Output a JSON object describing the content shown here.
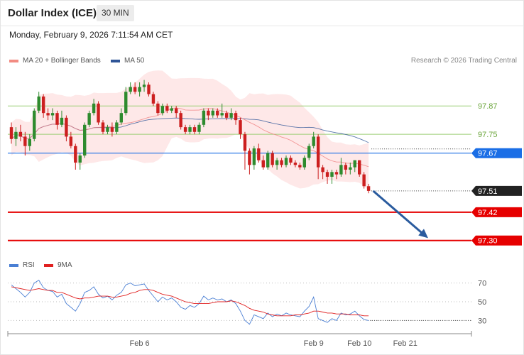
{
  "header": {
    "title": "Dollar Index (ICE)",
    "timeframe": "30 MIN"
  },
  "datetime": "Monday, February 9, 2026 7:11:54 AM CET",
  "legend": {
    "items": [
      {
        "label": "MA 20 + Bollinger Bands",
        "color": "#f28b82"
      },
      {
        "label": "MA 50",
        "color": "#2f5597"
      }
    ],
    "credit": "Research © 2026 Trading Central"
  },
  "rsi_legend": {
    "items": [
      {
        "label": "RSI",
        "color": "#4a7fd4"
      },
      {
        "label": "9MA",
        "color": "#e02020"
      }
    ]
  },
  "colors": {
    "up": "#2e8b2e",
    "down": "#cc1f1f",
    "band": "#fde0e0",
    "ma20": "#f08080",
    "ma50": "#2f5597",
    "pivot": "#1a6ee6",
    "target": "#e60000",
    "resistance": "#9acd73",
    "arrow": "#2a5b9e"
  },
  "chart_data": [
    {
      "type": "candlestick",
      "title": "Dollar Index (ICE)",
      "ylim": [
        97.23,
        98.03
      ],
      "xlabels": [
        {
          "label": "Feb 6",
          "index": 28
        },
        {
          "label": "Feb 9",
          "index": 66
        },
        {
          "label": "Feb 10",
          "index": 76
        },
        {
          "label": "Feb 21",
          "index": 86
        }
      ],
      "levels": [
        {
          "value": 97.87,
          "label": "97.87",
          "kind": "resistance"
        },
        {
          "value": 97.75,
          "label": "97.75",
          "kind": "resistance"
        },
        {
          "value": 97.67,
          "label": "97.67",
          "kind": "pivot"
        },
        {
          "value": 97.51,
          "label": "97.51",
          "kind": "last"
        },
        {
          "value": 97.42,
          "label": "97.42",
          "kind": "target"
        },
        {
          "value": 97.3,
          "label": "97.30",
          "kind": "target"
        }
      ],
      "candles": [
        [
          97.78,
          97.73,
          97.8,
          97.71
        ],
        [
          97.73,
          97.76,
          97.78,
          97.7
        ],
        [
          97.76,
          97.74,
          97.79,
          97.72
        ],
        [
          97.74,
          97.7,
          97.76,
          97.66
        ],
        [
          97.7,
          97.73,
          97.75,
          97.68
        ],
        [
          97.73,
          97.85,
          97.86,
          97.72
        ],
        [
          97.85,
          97.91,
          97.93,
          97.84
        ],
        [
          97.91,
          97.84,
          97.92,
          97.82
        ],
        [
          97.84,
          97.83,
          97.86,
          97.81
        ],
        [
          97.83,
          97.84,
          97.86,
          97.81
        ],
        [
          97.84,
          97.79,
          97.85,
          97.77
        ],
        [
          97.79,
          97.82,
          97.85,
          97.78
        ],
        [
          97.82,
          97.74,
          97.83,
          97.72
        ],
        [
          97.74,
          97.7,
          97.76,
          97.69
        ],
        [
          97.7,
          97.63,
          97.71,
          97.6
        ],
        [
          97.63,
          97.66,
          97.67,
          97.6
        ],
        [
          97.66,
          97.79,
          97.8,
          97.65
        ],
        [
          97.79,
          97.84,
          97.85,
          97.78
        ],
        [
          97.84,
          97.88,
          97.9,
          97.83
        ],
        [
          97.88,
          97.8,
          97.89,
          97.79
        ],
        [
          97.8,
          97.76,
          97.81,
          97.75
        ],
        [
          97.76,
          97.78,
          97.79,
          97.75
        ],
        [
          97.78,
          97.76,
          97.8,
          97.74
        ],
        [
          97.76,
          97.8,
          97.81,
          97.75
        ],
        [
          97.8,
          97.84,
          97.86,
          97.79
        ],
        [
          97.84,
          97.93,
          97.95,
          97.83
        ],
        [
          97.93,
          97.95,
          97.97,
          97.92
        ],
        [
          97.95,
          97.93,
          97.97,
          97.92
        ],
        [
          97.93,
          97.95,
          97.97,
          97.91
        ],
        [
          97.95,
          97.96,
          97.98,
          97.93
        ],
        [
          97.96,
          97.92,
          97.97,
          97.91
        ],
        [
          97.92,
          97.88,
          97.93,
          97.87
        ],
        [
          97.88,
          97.84,
          97.89,
          97.83
        ],
        [
          97.84,
          97.87,
          97.88,
          97.83
        ],
        [
          97.87,
          97.85,
          97.88,
          97.84
        ],
        [
          97.85,
          97.86,
          97.87,
          97.84
        ],
        [
          97.86,
          97.84,
          97.87,
          97.82
        ],
        [
          97.84,
          97.78,
          97.85,
          97.77
        ],
        [
          97.78,
          97.76,
          97.79,
          97.75
        ],
        [
          97.76,
          97.78,
          97.79,
          97.75
        ],
        [
          97.78,
          97.76,
          97.79,
          97.75
        ],
        [
          97.76,
          97.79,
          97.8,
          97.75
        ],
        [
          97.79,
          97.85,
          97.86,
          97.78
        ],
        [
          97.85,
          97.83,
          97.86,
          97.81
        ],
        [
          97.83,
          97.85,
          97.86,
          97.82
        ],
        [
          97.85,
          97.83,
          97.86,
          97.82
        ],
        [
          97.83,
          97.84,
          97.88,
          97.82
        ],
        [
          97.84,
          97.82,
          97.85,
          97.81
        ],
        [
          97.82,
          97.84,
          97.86,
          97.81
        ],
        [
          97.84,
          97.81,
          97.85,
          97.79
        ],
        [
          97.81,
          97.75,
          97.82,
          97.73
        ],
        [
          97.75,
          97.68,
          97.76,
          97.6
        ],
        [
          97.68,
          97.62,
          97.69,
          97.58
        ],
        [
          97.62,
          97.69,
          97.7,
          97.6
        ],
        [
          97.69,
          97.64,
          97.71,
          97.63
        ],
        [
          97.64,
          97.61,
          97.66,
          97.6
        ],
        [
          97.61,
          97.67,
          97.68,
          97.6
        ],
        [
          97.67,
          97.62,
          97.68,
          97.61
        ],
        [
          97.62,
          97.64,
          97.65,
          97.6
        ],
        [
          97.64,
          97.62,
          97.65,
          97.61
        ],
        [
          97.62,
          97.65,
          97.66,
          97.61
        ],
        [
          97.65,
          97.63,
          97.66,
          97.62
        ],
        [
          97.63,
          97.62,
          97.64,
          97.61
        ],
        [
          97.62,
          97.61,
          97.63,
          97.6
        ],
        [
          97.61,
          97.65,
          97.66,
          97.6
        ],
        [
          97.65,
          97.7,
          97.71,
          97.64
        ],
        [
          97.7,
          97.74,
          97.76,
          97.69
        ],
        [
          97.74,
          97.61,
          97.75,
          97.56
        ],
        [
          97.61,
          97.59,
          97.62,
          97.56
        ],
        [
          97.59,
          97.57,
          97.6,
          97.54
        ],
        [
          97.57,
          97.59,
          97.6,
          97.54
        ],
        [
          97.59,
          97.58,
          97.6,
          97.56
        ],
        [
          97.58,
          97.62,
          97.65,
          97.57
        ],
        [
          97.62,
          97.6,
          97.63,
          97.58
        ],
        [
          97.6,
          97.61,
          97.63,
          97.58
        ],
        [
          97.61,
          97.64,
          97.64,
          97.59
        ],
        [
          97.64,
          97.58,
          97.64,
          97.57
        ],
        [
          97.58,
          97.53,
          97.59,
          97.52
        ],
        [
          97.53,
          97.51,
          97.54,
          97.5
        ]
      ],
      "arrow": {
        "from_index": 79,
        "from_value": 97.51,
        "to_index": 91,
        "to_value": 97.31
      }
    },
    {
      "type": "line",
      "title": "RSI",
      "ylim": [
        22,
        78
      ],
      "yticks": [
        30,
        50,
        70
      ],
      "series": [
        {
          "name": "RSI",
          "values": [
            68,
            64,
            60,
            55,
            60,
            70,
            73,
            65,
            62,
            61,
            55,
            58,
            48,
            44,
            40,
            48,
            60,
            62,
            66,
            58,
            54,
            56,
            52,
            57,
            60,
            68,
            70,
            67,
            68,
            69,
            62,
            56,
            50,
            55,
            52,
            54,
            50,
            44,
            42,
            46,
            44,
            48,
            56,
            52,
            54,
            52,
            53,
            50,
            52,
            48,
            40,
            30,
            26,
            36,
            34,
            32,
            38,
            34,
            37,
            35,
            38,
            36,
            35,
            34,
            40,
            45,
            55,
            32,
            30,
            28,
            32,
            30,
            38,
            36,
            37,
            40,
            35,
            31,
            30
          ]
        },
        {
          "name": "9MA",
          "values": [
            66,
            65,
            64,
            63,
            62,
            63,
            64,
            63,
            62,
            62,
            60,
            60,
            58,
            56,
            54,
            53,
            54,
            54,
            55,
            56,
            56,
            56,
            55,
            55,
            56,
            57,
            59,
            60,
            62,
            63,
            63,
            62,
            60,
            58,
            57,
            56,
            54,
            52,
            50,
            49,
            48,
            48,
            48,
            48,
            49,
            50,
            50,
            50,
            51,
            50,
            48,
            46,
            43,
            41,
            40,
            39,
            37,
            36,
            35,
            35,
            35,
            35,
            36,
            36,
            37,
            38,
            40,
            40,
            39,
            38,
            38,
            37,
            37,
            37,
            36,
            36,
            36,
            35,
            35
          ]
        }
      ]
    }
  ]
}
